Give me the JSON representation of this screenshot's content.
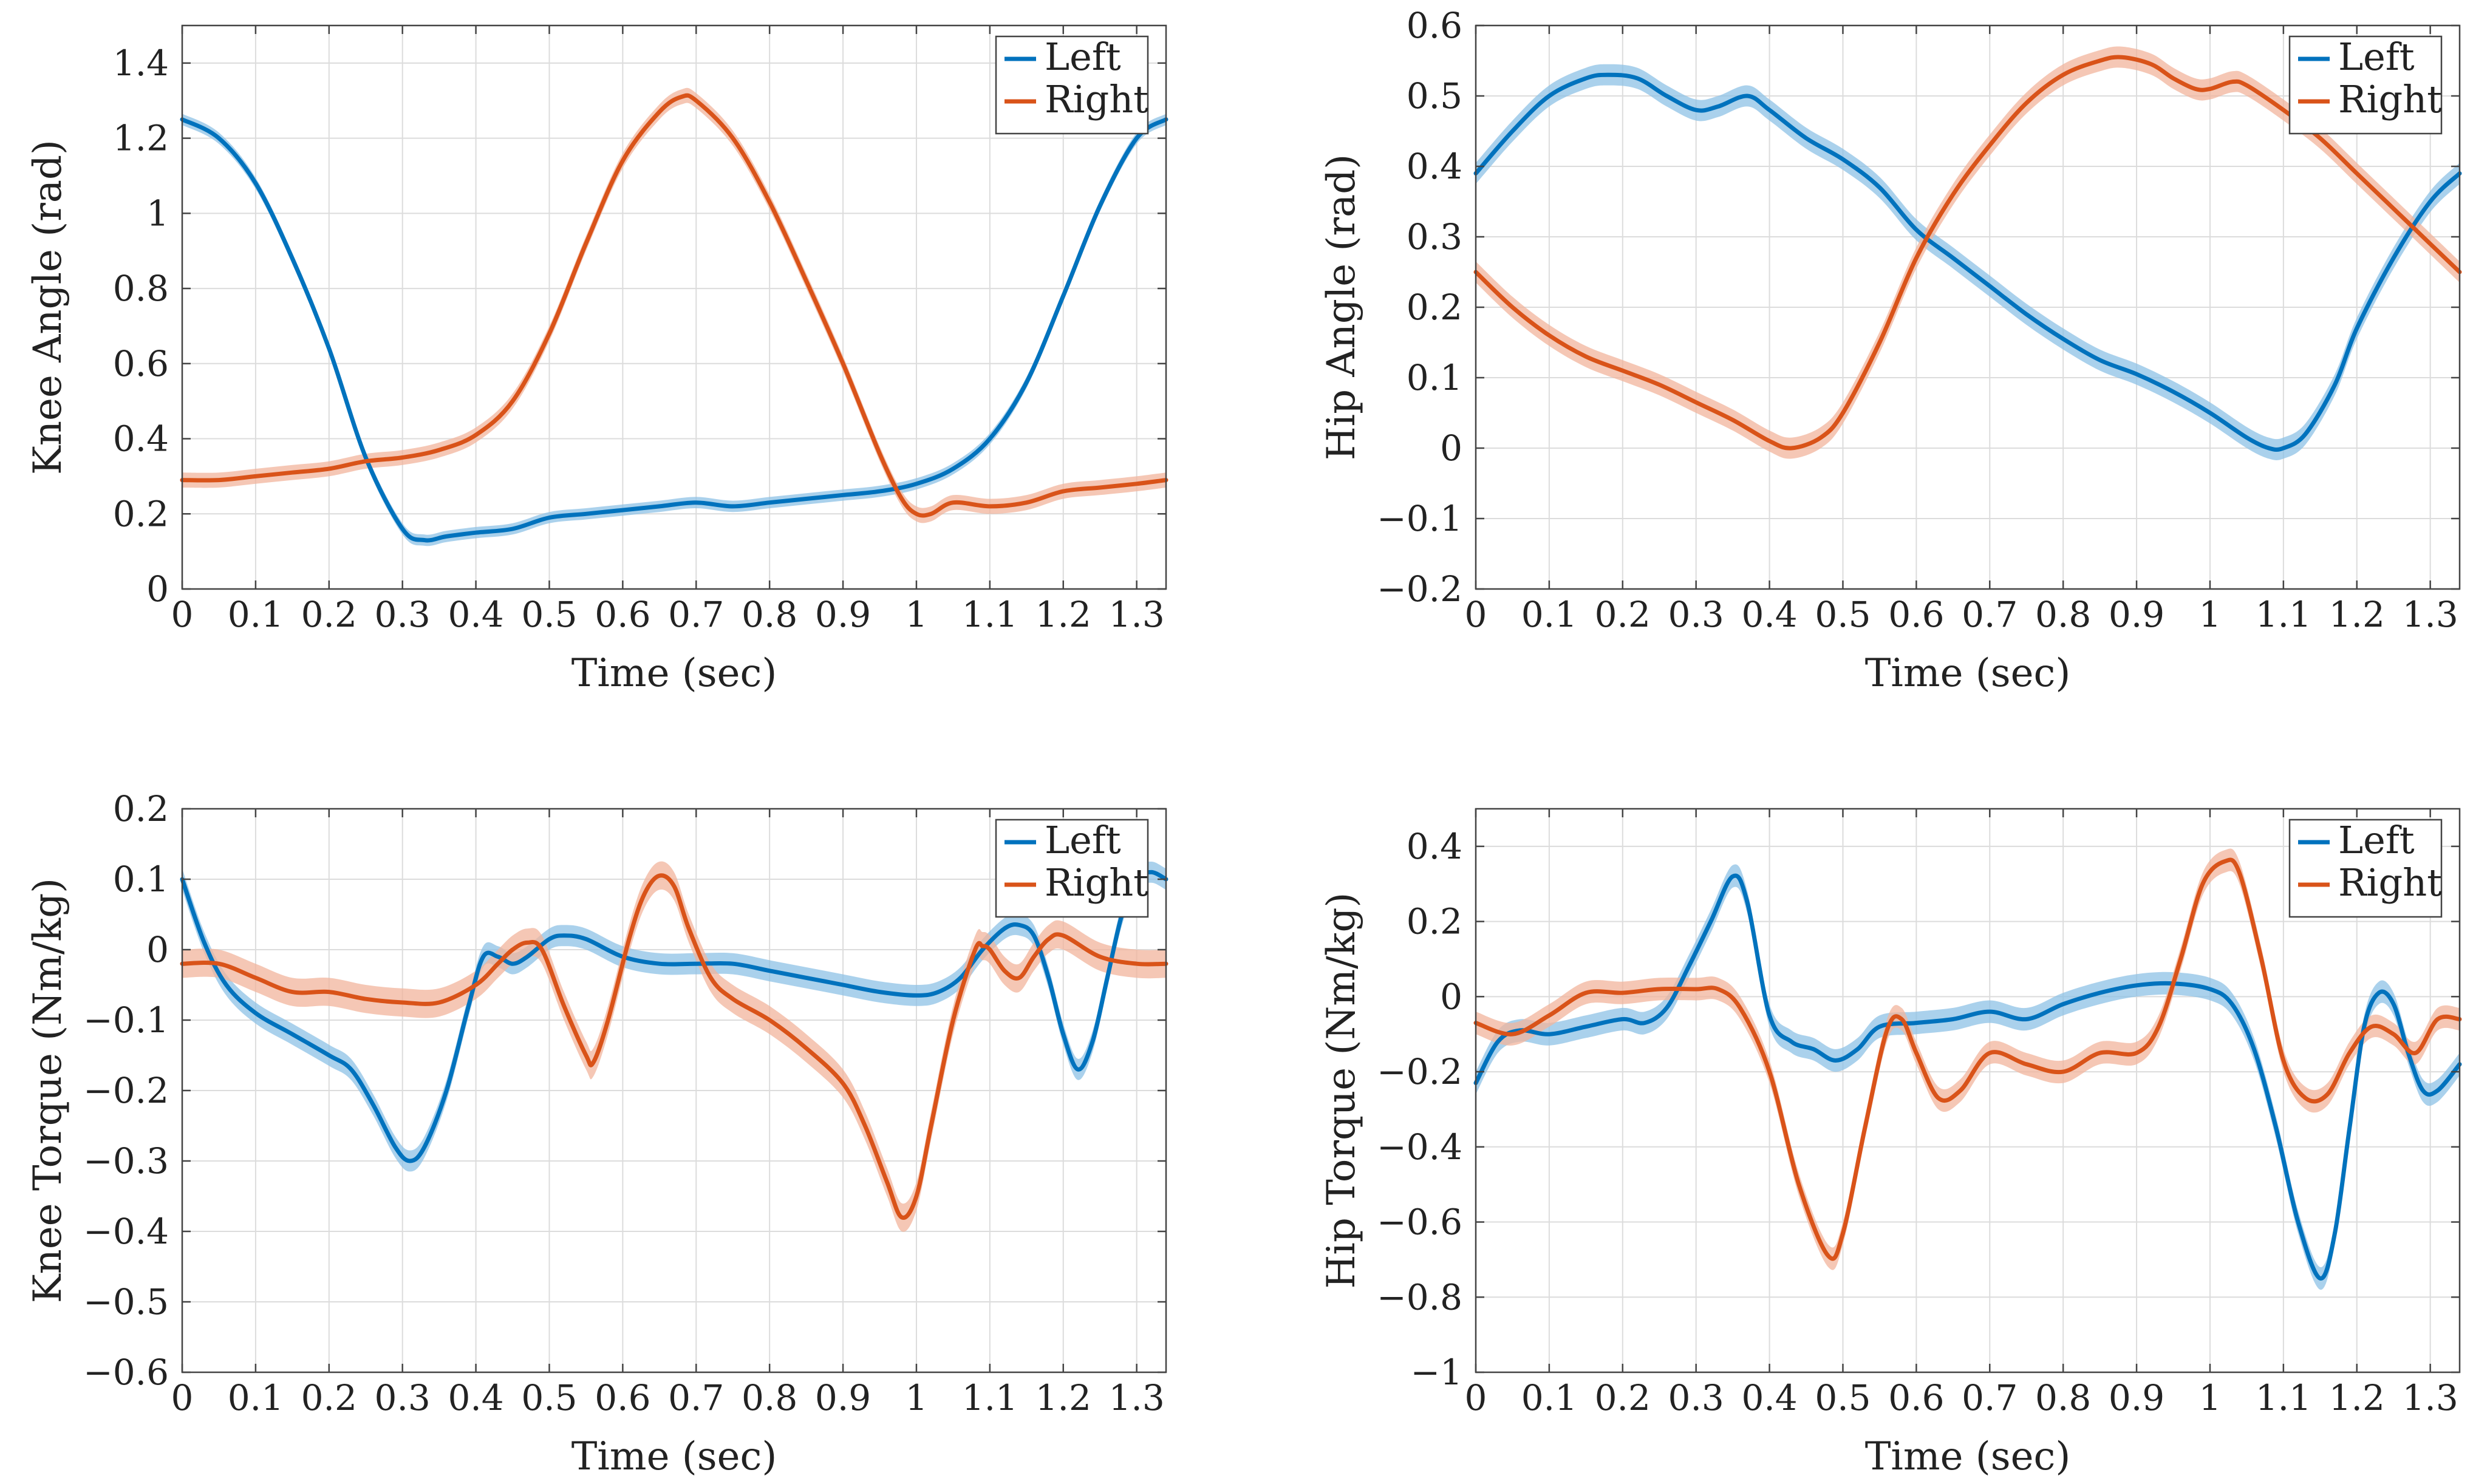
{
  "colors": {
    "left": "#0072BD",
    "right": "#D95319",
    "left_band": "#8EC1E6",
    "right_band": "#F1B49C",
    "grid": "#dcdcdc",
    "axis": "#444444"
  },
  "chart_data": [
    {
      "type": "line",
      "id": "knee-angle",
      "xlabel": "Time (sec)",
      "ylabel": "Knee Angle (rad)",
      "xlim": [
        0,
        1.34
      ],
      "ylim": [
        0,
        1.5
      ],
      "xticks": [
        0,
        0.1,
        0.2,
        0.3,
        0.4,
        0.5,
        0.6,
        0.7,
        0.8,
        0.9,
        1,
        1.1,
        1.2,
        1.3
      ],
      "xtick_labels": [
        "0",
        "0.1",
        "0.2",
        "0.3",
        "0.4",
        "0.5",
        "0.6",
        "0.7",
        "0.8",
        "0.9",
        "1",
        "1.1",
        "1.2",
        "1.3"
      ],
      "yticks": [
        0,
        0.2,
        0.4,
        0.6,
        0.8,
        1,
        1.2,
        1.4
      ],
      "ytick_labels": [
        "0",
        "0.2",
        "0.4",
        "0.6",
        "0.8",
        "1",
        "1.2",
        "1.4"
      ],
      "legend": [
        "Left",
        "Right"
      ],
      "series": [
        {
          "name": "Left",
          "band": 0.015,
          "x": [
            0,
            0.05,
            0.1,
            0.15,
            0.2,
            0.25,
            0.3,
            0.33,
            0.36,
            0.4,
            0.45,
            0.5,
            0.55,
            0.6,
            0.65,
            0.7,
            0.75,
            0.8,
            0.85,
            0.9,
            0.95,
            1.0,
            1.05,
            1.1,
            1.15,
            1.2,
            1.25,
            1.3,
            1.34
          ],
          "y": [
            1.25,
            1.2,
            1.08,
            0.88,
            0.64,
            0.35,
            0.16,
            0.13,
            0.14,
            0.15,
            0.16,
            0.19,
            0.2,
            0.21,
            0.22,
            0.23,
            0.22,
            0.23,
            0.24,
            0.25,
            0.26,
            0.28,
            0.32,
            0.4,
            0.55,
            0.78,
            1.02,
            1.2,
            1.25
          ]
        },
        {
          "name": "Right",
          "band": 0.02,
          "x": [
            0,
            0.05,
            0.1,
            0.15,
            0.2,
            0.25,
            0.3,
            0.35,
            0.4,
            0.45,
            0.5,
            0.55,
            0.6,
            0.65,
            0.68,
            0.7,
            0.75,
            0.8,
            0.85,
            0.9,
            0.95,
            0.98,
            1.0,
            1.02,
            1.05,
            1.1,
            1.15,
            1.2,
            1.25,
            1.3,
            1.34
          ],
          "y": [
            0.29,
            0.29,
            0.3,
            0.31,
            0.32,
            0.34,
            0.35,
            0.37,
            0.41,
            0.5,
            0.68,
            0.92,
            1.14,
            1.27,
            1.31,
            1.3,
            1.2,
            1.03,
            0.82,
            0.6,
            0.36,
            0.24,
            0.2,
            0.2,
            0.23,
            0.22,
            0.23,
            0.26,
            0.27,
            0.28,
            0.29
          ]
        }
      ]
    },
    {
      "type": "line",
      "id": "hip-angle",
      "xlabel": "Time (sec)",
      "ylabel": "Hip Angle (rad)",
      "xlim": [
        0,
        1.34
      ],
      "ylim": [
        -0.2,
        0.6
      ],
      "xticks": [
        0,
        0.1,
        0.2,
        0.3,
        0.4,
        0.5,
        0.6,
        0.7,
        0.8,
        0.9,
        1,
        1.1,
        1.2,
        1.3
      ],
      "xtick_labels": [
        "0",
        "0.1",
        "0.2",
        "0.3",
        "0.4",
        "0.5",
        "0.6",
        "0.7",
        "0.8",
        "0.9",
        "1",
        "1.1",
        "1.2",
        "1.3"
      ],
      "yticks": [
        -0.2,
        -0.1,
        0,
        0.1,
        0.2,
        0.3,
        0.4,
        0.5,
        0.6
      ],
      "ytick_labels": [
        "−0.2",
        "−0.1",
        "0",
        "0.1",
        "0.2",
        "0.3",
        "0.4",
        "0.5",
        "0.6"
      ],
      "legend": [
        "Left",
        "Right"
      ],
      "series": [
        {
          "name": "Left",
          "band": 0.015,
          "x": [
            0,
            0.05,
            0.1,
            0.15,
            0.18,
            0.22,
            0.26,
            0.3,
            0.33,
            0.37,
            0.4,
            0.45,
            0.5,
            0.55,
            0.6,
            0.65,
            0.7,
            0.75,
            0.8,
            0.85,
            0.9,
            0.95,
            1.0,
            1.05,
            1.08,
            1.1,
            1.13,
            1.17,
            1.2,
            1.25,
            1.3,
            1.34
          ],
          "y": [
            0.39,
            0.45,
            0.5,
            0.525,
            0.53,
            0.525,
            0.5,
            0.48,
            0.485,
            0.5,
            0.48,
            0.44,
            0.41,
            0.37,
            0.31,
            0.27,
            0.23,
            0.19,
            0.155,
            0.125,
            0.105,
            0.08,
            0.05,
            0.015,
            0.0,
            0.0,
            0.02,
            0.09,
            0.17,
            0.27,
            0.35,
            0.39
          ]
        },
        {
          "name": "Right",
          "band": 0.015,
          "x": [
            0,
            0.05,
            0.1,
            0.15,
            0.2,
            0.25,
            0.3,
            0.35,
            0.4,
            0.43,
            0.47,
            0.5,
            0.55,
            0.6,
            0.65,
            0.7,
            0.75,
            0.8,
            0.85,
            0.88,
            0.92,
            0.95,
            0.98,
            1.0,
            1.03,
            1.05,
            1.1,
            1.15,
            1.2,
            1.25,
            1.3,
            1.34
          ],
          "y": [
            0.25,
            0.2,
            0.16,
            0.13,
            0.11,
            0.09,
            0.065,
            0.04,
            0.01,
            0.0,
            0.015,
            0.05,
            0.15,
            0.27,
            0.36,
            0.43,
            0.49,
            0.53,
            0.55,
            0.555,
            0.545,
            0.525,
            0.51,
            0.51,
            0.52,
            0.515,
            0.48,
            0.44,
            0.39,
            0.34,
            0.29,
            0.25
          ]
        }
      ]
    },
    {
      "type": "line",
      "id": "knee-torque",
      "xlabel": "Time (sec)",
      "ylabel": "Knee Torque (Nm/kg)",
      "xlim": [
        0,
        1.34
      ],
      "ylim": [
        -0.6,
        0.2
      ],
      "xticks": [
        0,
        0.1,
        0.2,
        0.3,
        0.4,
        0.5,
        0.6,
        0.7,
        0.8,
        0.9,
        1,
        1.1,
        1.2,
        1.3
      ],
      "xtick_labels": [
        "0",
        "0.1",
        "0.2",
        "0.3",
        "0.4",
        "0.5",
        "0.6",
        "0.7",
        "0.8",
        "0.9",
        "1",
        "1.1",
        "1.2",
        "1.3"
      ],
      "yticks": [
        -0.6,
        -0.5,
        -0.4,
        -0.3,
        -0.2,
        -0.1,
        0,
        0.1,
        0.2
      ],
      "ytick_labels": [
        "−0.6",
        "−0.5",
        "−0.4",
        "−0.3",
        "−0.2",
        "−0.1",
        "0",
        "0.1",
        "0.2"
      ],
      "legend": [
        "Left",
        "Right"
      ],
      "series": [
        {
          "name": "Left",
          "band": 0.015,
          "x": [
            0,
            0.03,
            0.06,
            0.1,
            0.15,
            0.2,
            0.23,
            0.26,
            0.29,
            0.31,
            0.33,
            0.36,
            0.39,
            0.41,
            0.43,
            0.45,
            0.47,
            0.5,
            0.52,
            0.55,
            0.6,
            0.65,
            0.7,
            0.75,
            0.8,
            0.85,
            0.9,
            0.95,
            1.0,
            1.03,
            1.06,
            1.09,
            1.12,
            1.14,
            1.16,
            1.18,
            1.2,
            1.22,
            1.24,
            1.26,
            1.28,
            1.3,
            1.32,
            1.34
          ],
          "y": [
            0.1,
            0.01,
            -0.05,
            -0.09,
            -0.12,
            -0.15,
            -0.17,
            -0.22,
            -0.28,
            -0.3,
            -0.28,
            -0.2,
            -0.08,
            -0.01,
            -0.01,
            -0.02,
            -0.01,
            0.015,
            0.02,
            0.015,
            -0.01,
            -0.02,
            -0.02,
            -0.02,
            -0.03,
            -0.04,
            -0.05,
            -0.06,
            -0.065,
            -0.06,
            -0.04,
            0.0,
            0.03,
            0.035,
            0.02,
            -0.04,
            -0.12,
            -0.17,
            -0.13,
            -0.04,
            0.05,
            0.1,
            0.11,
            0.1
          ]
        },
        {
          "name": "Right",
          "band": 0.02,
          "x": [
            0,
            0.05,
            0.1,
            0.15,
            0.2,
            0.25,
            0.3,
            0.35,
            0.4,
            0.43,
            0.45,
            0.47,
            0.49,
            0.52,
            0.55,
            0.56,
            0.58,
            0.61,
            0.63,
            0.65,
            0.67,
            0.69,
            0.72,
            0.75,
            0.8,
            0.85,
            0.9,
            0.93,
            0.96,
            0.98,
            1.0,
            1.02,
            1.05,
            1.08,
            1.09,
            1.1,
            1.12,
            1.14,
            1.16,
            1.18,
            1.2,
            1.25,
            1.3,
            1.34
          ],
          "y": [
            -0.02,
            -0.02,
            -0.04,
            -0.06,
            -0.06,
            -0.07,
            -0.075,
            -0.075,
            -0.05,
            -0.02,
            0.0,
            0.01,
            0.0,
            -0.08,
            -0.15,
            -0.16,
            -0.1,
            0.02,
            0.08,
            0.105,
            0.09,
            0.03,
            -0.04,
            -0.07,
            -0.1,
            -0.14,
            -0.19,
            -0.25,
            -0.33,
            -0.38,
            -0.35,
            -0.25,
            -0.1,
            0.0,
            0.005,
            0.0,
            -0.03,
            -0.04,
            -0.01,
            0.015,
            0.02,
            -0.01,
            -0.02,
            -0.02
          ]
        }
      ]
    },
    {
      "type": "line",
      "id": "hip-torque",
      "xlabel": "Time (sec)",
      "ylabel": "Hip Torque (Nm/kg)",
      "xlim": [
        0,
        1.34
      ],
      "ylim": [
        -1,
        0.5
      ],
      "xticks": [
        0,
        0.1,
        0.2,
        0.3,
        0.4,
        0.5,
        0.6,
        0.7,
        0.8,
        0.9,
        1,
        1.1,
        1.2,
        1.3
      ],
      "xtick_labels": [
        "0",
        "0.1",
        "0.2",
        "0.3",
        "0.4",
        "0.5",
        "0.6",
        "0.7",
        "0.8",
        "0.9",
        "1",
        "1.1",
        "1.2",
        "1.3"
      ],
      "yticks": [
        -1,
        -0.8,
        -0.6,
        -0.4,
        -0.2,
        0,
        0.2,
        0.4
      ],
      "ytick_labels": [
        "−1",
        "−0.8",
        "−0.6",
        "−0.4",
        "−0.2",
        "0",
        "0.2",
        "0.4"
      ],
      "legend": [
        "Left",
        "Right"
      ],
      "series": [
        {
          "name": "Left",
          "band": 0.03,
          "x": [
            0,
            0.03,
            0.06,
            0.1,
            0.15,
            0.2,
            0.23,
            0.26,
            0.29,
            0.32,
            0.35,
            0.37,
            0.4,
            0.43,
            0.46,
            0.49,
            0.52,
            0.55,
            0.6,
            0.65,
            0.7,
            0.75,
            0.8,
            0.85,
            0.9,
            0.95,
            1.0,
            1.03,
            1.06,
            1.09,
            1.12,
            1.15,
            1.17,
            1.19,
            1.21,
            1.23,
            1.25,
            1.27,
            1.29,
            1.31,
            1.34
          ],
          "y": [
            -0.23,
            -0.12,
            -0.09,
            -0.1,
            -0.08,
            -0.06,
            -0.07,
            -0.03,
            0.08,
            0.2,
            0.32,
            0.25,
            -0.05,
            -0.12,
            -0.14,
            -0.17,
            -0.14,
            -0.08,
            -0.07,
            -0.06,
            -0.04,
            -0.06,
            -0.02,
            0.01,
            0.03,
            0.035,
            0.02,
            -0.02,
            -0.14,
            -0.35,
            -0.6,
            -0.75,
            -0.63,
            -0.35,
            -0.08,
            0.01,
            -0.02,
            -0.15,
            -0.25,
            -0.25,
            -0.18
          ]
        },
        {
          "name": "Right",
          "band": 0.03,
          "x": [
            0,
            0.05,
            0.1,
            0.15,
            0.2,
            0.25,
            0.3,
            0.33,
            0.36,
            0.4,
            0.44,
            0.48,
            0.5,
            0.53,
            0.56,
            0.58,
            0.6,
            0.63,
            0.66,
            0.7,
            0.75,
            0.8,
            0.85,
            0.9,
            0.93,
            0.96,
            0.99,
            1.02,
            1.04,
            1.07,
            1.1,
            1.13,
            1.16,
            1.19,
            1.22,
            1.25,
            1.28,
            1.31,
            1.34
          ],
          "y": [
            -0.07,
            -0.1,
            -0.05,
            0.01,
            0.01,
            0.02,
            0.02,
            0.02,
            -0.03,
            -0.2,
            -0.5,
            -0.69,
            -0.63,
            -0.35,
            -0.09,
            -0.06,
            -0.15,
            -0.27,
            -0.25,
            -0.15,
            -0.18,
            -0.2,
            -0.15,
            -0.15,
            -0.08,
            0.1,
            0.3,
            0.36,
            0.33,
            0.1,
            -0.17,
            -0.27,
            -0.26,
            -0.15,
            -0.08,
            -0.1,
            -0.15,
            -0.06,
            -0.06
          ]
        }
      ]
    }
  ]
}
